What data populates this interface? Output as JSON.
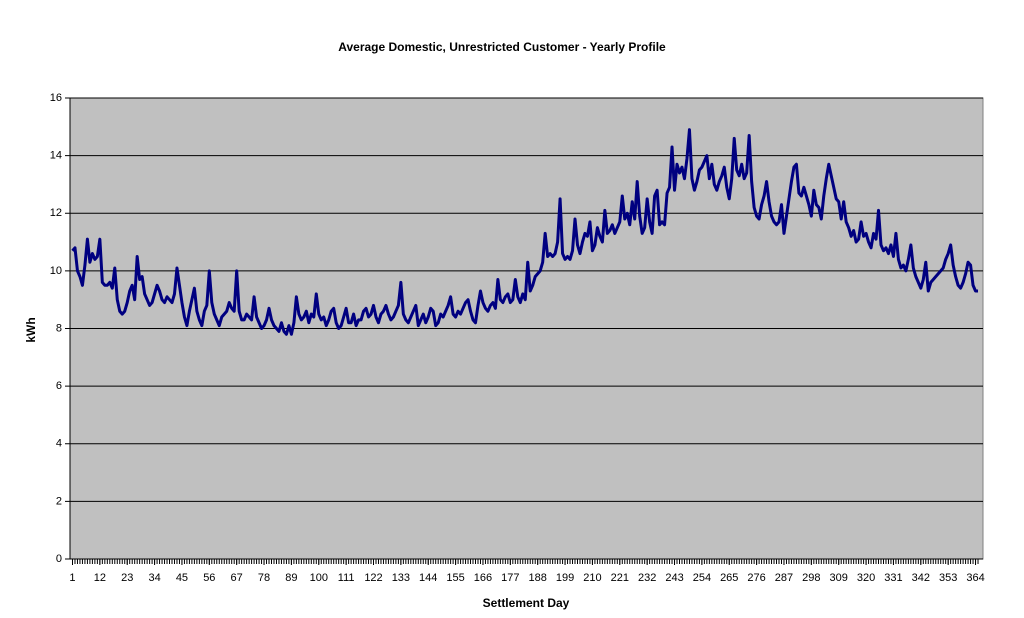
{
  "chart_data": {
    "type": "line",
    "title": "Average Domestic, Unrestricted Customer - Yearly Profile",
    "x_label": "Settlement Day",
    "y_label": "kWh",
    "xlim": [
      0,
      367
    ],
    "ylim": [
      0,
      16
    ],
    "xticks": [
      1,
      12,
      23,
      34,
      45,
      56,
      67,
      78,
      89,
      100,
      111,
      122,
      133,
      144,
      155,
      166,
      177,
      188,
      199,
      210,
      221,
      232,
      243,
      254,
      265,
      276,
      287,
      298,
      309,
      320,
      331,
      342,
      353,
      364
    ],
    "yticks": [
      0,
      2,
      4,
      6,
      8,
      10,
      12,
      14,
      16
    ],
    "grid": true,
    "x": [
      1,
      2,
      3,
      4,
      5,
      6,
      7,
      8,
      9,
      10,
      11,
      12,
      13,
      14,
      15,
      16,
      17,
      18,
      19,
      20,
      21,
      22,
      23,
      24,
      25,
      26,
      27,
      28,
      29,
      30,
      31,
      32,
      33,
      34,
      35,
      36,
      37,
      38,
      39,
      40,
      41,
      42,
      43,
      44,
      45,
      46,
      47,
      48,
      49,
      50,
      51,
      52,
      53,
      54,
      55,
      56,
      57,
      58,
      59,
      60,
      61,
      62,
      63,
      64,
      65,
      66,
      67,
      68,
      69,
      70,
      71,
      72,
      73,
      74,
      75,
      76,
      77,
      78,
      79,
      80,
      81,
      82,
      83,
      84,
      85,
      86,
      87,
      88,
      89,
      90,
      91,
      92,
      93,
      94,
      95,
      96,
      97,
      98,
      99,
      100,
      101,
      102,
      103,
      104,
      105,
      106,
      107,
      108,
      109,
      110,
      111,
      112,
      113,
      114,
      115,
      116,
      117,
      118,
      119,
      120,
      121,
      122,
      123,
      124,
      125,
      126,
      127,
      128,
      129,
      130,
      131,
      132,
      133,
      134,
      135,
      136,
      137,
      138,
      139,
      140,
      141,
      142,
      143,
      144,
      145,
      146,
      147,
      148,
      149,
      150,
      151,
      152,
      153,
      154,
      155,
      156,
      157,
      158,
      159,
      160,
      161,
      162,
      163,
      164,
      165,
      166,
      167,
      168,
      169,
      170,
      171,
      172,
      173,
      174,
      175,
      176,
      177,
      178,
      179,
      180,
      181,
      182,
      183,
      184,
      185,
      186,
      187,
      188,
      189,
      190,
      191,
      192,
      193,
      194,
      195,
      196,
      197,
      198,
      199,
      200,
      201,
      202,
      203,
      204,
      205,
      206,
      207,
      208,
      209,
      210,
      211,
      212,
      213,
      214,
      215,
      216,
      217,
      218,
      219,
      220,
      221,
      222,
      223,
      224,
      225,
      226,
      227,
      228,
      229,
      230,
      231,
      232,
      233,
      234,
      235,
      236,
      237,
      238,
      239,
      240,
      241,
      242,
      243,
      244,
      245,
      246,
      247,
      248,
      249,
      250,
      251,
      252,
      253,
      254,
      255,
      256,
      257,
      258,
      259,
      260,
      261,
      262,
      263,
      264,
      265,
      266,
      267,
      268,
      269,
      270,
      271,
      272,
      273,
      274,
      275,
      276,
      277,
      278,
      279,
      280,
      281,
      282,
      283,
      284,
      285,
      286,
      287,
      288,
      289,
      290,
      291,
      292,
      293,
      294,
      295,
      296,
      297,
      298,
      299,
      300,
      301,
      302,
      303,
      304,
      305,
      306,
      307,
      308,
      309,
      310,
      311,
      312,
      313,
      314,
      315,
      316,
      317,
      318,
      319,
      320,
      321,
      322,
      323,
      324,
      325,
      326,
      327,
      328,
      329,
      330,
      331,
      332,
      333,
      334,
      335,
      336,
      337,
      338,
      339,
      340,
      341,
      342,
      343,
      344,
      345,
      346,
      347,
      348,
      349,
      350,
      351,
      352,
      353,
      354,
      355,
      356,
      357,
      358,
      359,
      360,
      361,
      362,
      363,
      364,
      365
    ],
    "series": [
      {
        "name": "kWh",
        "color": "#000080",
        "values": [
          10.7,
          10.8,
          10.0,
          9.8,
          9.5,
          10.2,
          11.1,
          10.3,
          10.6,
          10.4,
          10.5,
          11.1,
          9.6,
          9.5,
          9.5,
          9.6,
          9.4,
          10.1,
          9.0,
          8.6,
          8.5,
          8.6,
          8.9,
          9.3,
          9.5,
          9.0,
          10.5,
          9.7,
          9.8,
          9.2,
          9.0,
          8.8,
          8.9,
          9.2,
          9.5,
          9.3,
          9.0,
          8.9,
          9.1,
          9.0,
          8.9,
          9.2,
          10.1,
          9.5,
          8.9,
          8.4,
          8.1,
          8.6,
          9.0,
          9.4,
          8.6,
          8.3,
          8.1,
          8.6,
          8.8,
          10.0,
          8.9,
          8.5,
          8.3,
          8.1,
          8.4,
          8.5,
          8.6,
          8.9,
          8.7,
          8.6,
          10.0,
          8.6,
          8.3,
          8.3,
          8.5,
          8.4,
          8.3,
          9.1,
          8.4,
          8.2,
          8.0,
          8.1,
          8.3,
          8.7,
          8.3,
          8.1,
          8.0,
          7.9,
          8.2,
          7.9,
          7.8,
          8.1,
          7.8,
          8.2,
          9.1,
          8.5,
          8.3,
          8.4,
          8.6,
          8.2,
          8.5,
          8.4,
          9.2,
          8.5,
          8.3,
          8.4,
          8.1,
          8.3,
          8.6,
          8.7,
          8.2,
          8.0,
          8.1,
          8.4,
          8.7,
          8.2,
          8.2,
          8.5,
          8.1,
          8.3,
          8.3,
          8.6,
          8.7,
          8.4,
          8.5,
          8.8,
          8.4,
          8.2,
          8.5,
          8.6,
          8.8,
          8.5,
          8.3,
          8.4,
          8.6,
          8.8,
          9.6,
          8.5,
          8.3,
          8.2,
          8.4,
          8.6,
          8.8,
          8.1,
          8.3,
          8.5,
          8.2,
          8.4,
          8.7,
          8.6,
          8.1,
          8.2,
          8.5,
          8.4,
          8.6,
          8.8,
          9.1,
          8.5,
          8.4,
          8.6,
          8.5,
          8.7,
          8.9,
          9.0,
          8.6,
          8.3,
          8.2,
          8.8,
          9.3,
          8.9,
          8.7,
          8.6,
          8.8,
          8.9,
          8.7,
          9.7,
          9.0,
          8.9,
          9.1,
          9.2,
          8.9,
          9.0,
          9.7,
          9.1,
          8.9,
          9.2,
          9.0,
          10.3,
          9.3,
          9.5,
          9.8,
          9.9,
          10.0,
          10.3,
          11.3,
          10.5,
          10.6,
          10.5,
          10.6,
          11.0,
          12.5,
          10.6,
          10.4,
          10.5,
          10.4,
          10.7,
          11.8,
          10.9,
          10.6,
          11.0,
          11.3,
          11.2,
          11.7,
          10.7,
          10.9,
          11.5,
          11.2,
          11.0,
          12.1,
          11.3,
          11.4,
          11.6,
          11.3,
          11.5,
          11.7,
          12.6,
          11.8,
          12.0,
          11.6,
          12.4,
          11.8,
          13.1,
          11.9,
          11.3,
          11.5,
          12.5,
          11.7,
          11.3,
          12.6,
          12.8,
          11.6,
          11.7,
          11.6,
          12.7,
          12.9,
          14.3,
          12.8,
          13.7,
          13.4,
          13.6,
          13.2,
          13.9,
          14.9,
          13.2,
          12.8,
          13.1,
          13.5,
          13.6,
          13.8,
          14.0,
          13.2,
          13.7,
          13.0,
          12.8,
          13.1,
          13.3,
          13.6,
          12.9,
          12.5,
          13.2,
          14.6,
          13.5,
          13.3,
          13.7,
          13.2,
          13.4,
          14.7,
          13.1,
          12.2,
          11.9,
          11.8,
          12.3,
          12.6,
          13.1,
          12.4,
          11.9,
          11.7,
          11.6,
          11.7,
          12.3,
          11.3,
          11.9,
          12.5,
          13.1,
          13.6,
          13.7,
          12.7,
          12.6,
          12.9,
          12.6,
          12.3,
          11.9,
          12.8,
          12.3,
          12.2,
          11.8,
          12.6,
          13.2,
          13.7,
          13.3,
          12.9,
          12.5,
          12.4,
          11.8,
          12.4,
          11.7,
          11.5,
          11.2,
          11.4,
          11.0,
          11.1,
          11.7,
          11.2,
          11.3,
          11.0,
          10.8,
          11.3,
          11.1,
          12.1,
          10.9,
          10.7,
          10.8,
          10.6,
          10.9,
          10.5,
          11.3,
          10.4,
          10.1,
          10.2,
          10.0,
          10.4,
          10.9,
          10.1,
          9.8,
          9.6,
          9.4,
          9.7,
          10.3,
          9.3,
          9.6,
          9.7,
          9.8,
          9.9,
          10.0,
          10.1,
          10.4,
          10.6,
          10.9,
          10.2,
          9.8,
          9.5,
          9.4,
          9.6,
          9.9,
          10.3,
          10.2,
          9.5,
          9.3,
          9.3
        ]
      }
    ]
  }
}
